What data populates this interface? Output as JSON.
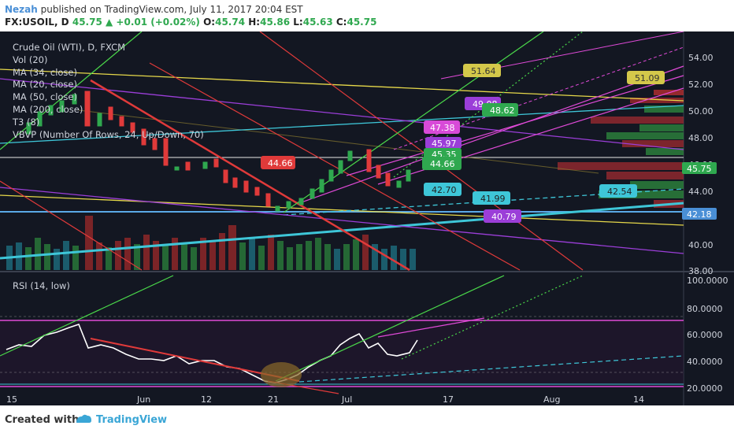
{
  "header": {
    "author": "Nezah",
    "published": "published on TradingView.com, July 11, 2017 20:04 EST",
    "symbol_interval": "FX:USOIL, D",
    "last": "45.75",
    "change": "+0.01 (+0.02%)",
    "o_label": "O:",
    "o_val": "45.74",
    "h_label": "H:",
    "h_val": "45.86",
    "l_label": "L:",
    "l_val": "45.63",
    "c_label": "C:",
    "c_val": "45.75"
  },
  "legend": {
    "items": [
      "Crude Oil (WTI), D, FXCM",
      "Vol (20)",
      "MA (34, close)",
      "MA (20, close)",
      "MA (50, close)",
      "MA (200, close)",
      "T3 (8)",
      "VBVP (Number Of Rows, 24, Up/Down, 70)"
    ]
  },
  "rsi": {
    "label": "RSI (14, low)"
  },
  "axis": {
    "price_ticks": [
      "54.00",
      "52.00",
      "50.00",
      "48.00",
      "46.00",
      "44.00",
      "40.00",
      "38.00"
    ],
    "rsi_ticks": [
      "100.0000",
      "80.0000",
      "60.0000",
      "40.0000",
      "20.0000"
    ],
    "x_ticks": [
      "15",
      "Jun",
      "12",
      "21",
      "Jul",
      "17",
      "Aug",
      "14"
    ],
    "price_badges": [
      "45.75",
      "42.18"
    ]
  },
  "labels": [
    "44.66",
    "51.64",
    "51.09",
    "49.08",
    "48.62",
    "47.38",
    "45.97",
    "45.35",
    "44.66",
    "42.70",
    "41.99",
    "42.54",
    "40.79"
  ],
  "footer": {
    "created": "Created with",
    "brand": "TradingView"
  },
  "colors": {
    "background": "#131722",
    "up": "#2fa84f",
    "down": "#e03a3a"
  },
  "chart_data": {
    "type": "candlestick",
    "x_labels": [
      "15",
      "Jun",
      "12",
      "21",
      "Jul",
      "17",
      "Aug",
      "14"
    ],
    "ylim": [
      38,
      56
    ],
    "rsi_ylim": [
      10,
      100
    ]
  }
}
